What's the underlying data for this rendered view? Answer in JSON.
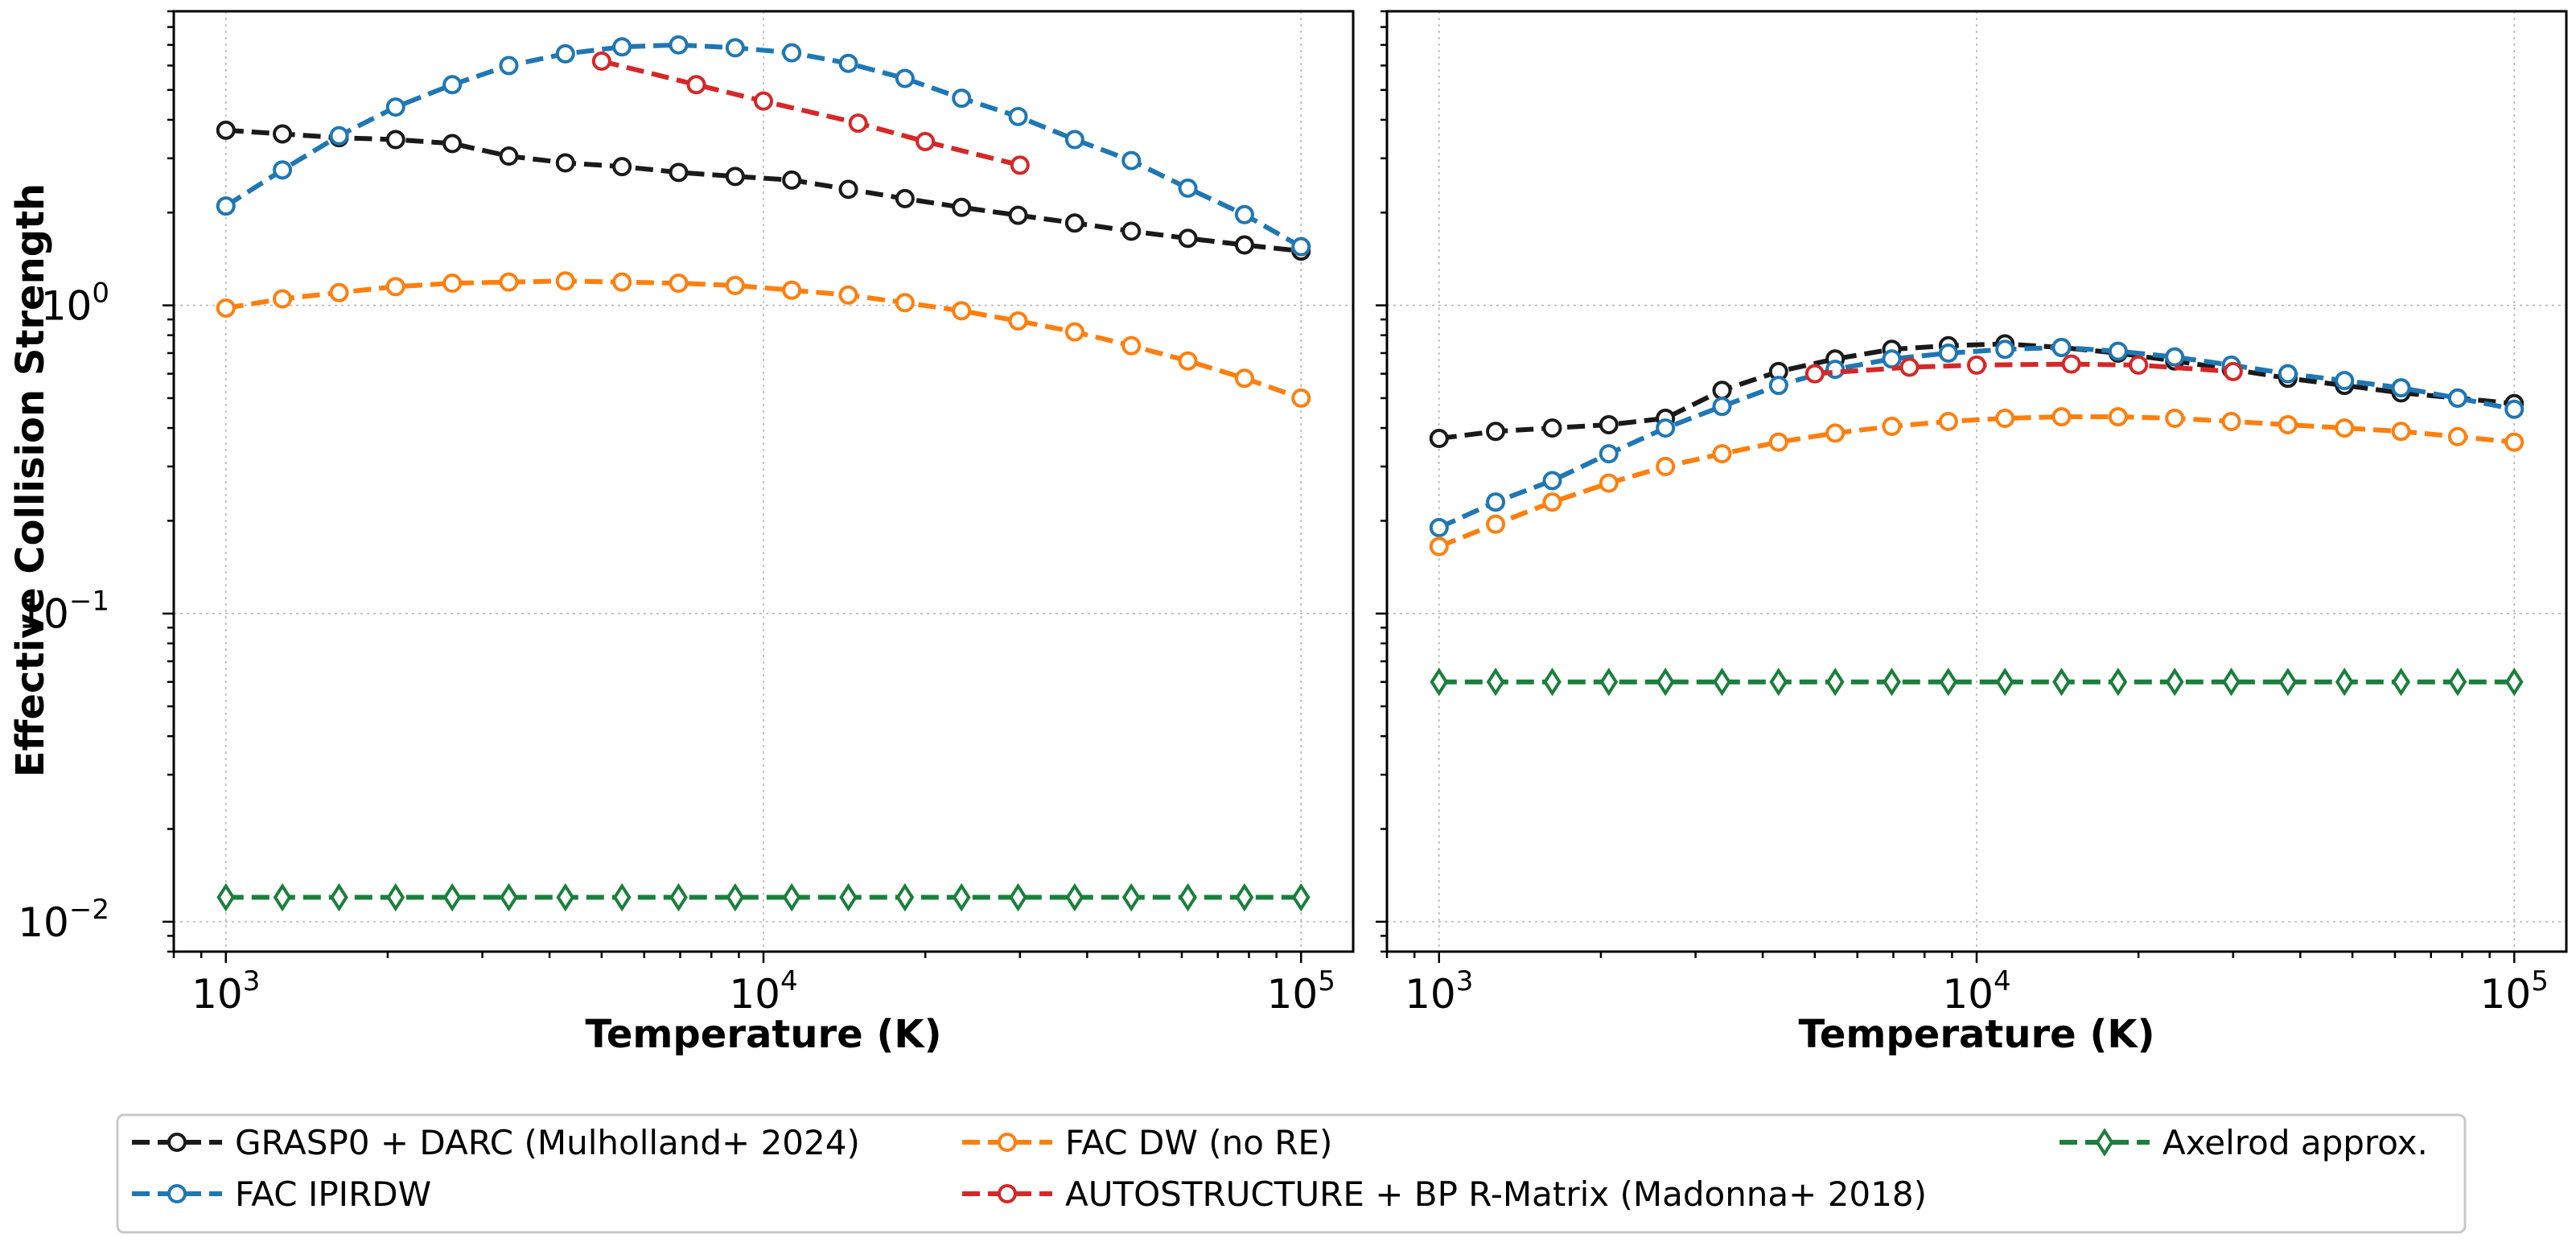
{
  "chart_data": [
    {
      "type": "line",
      "panel": "left",
      "xlabel": "Temperature (K)",
      "ylabel": "Effective Collision Strength",
      "xscale": "log",
      "yscale": "log",
      "xlim": [
        800,
        125000
      ],
      "ylim": [
        0.008,
        9
      ],
      "xticks": [
        {
          "base": "10",
          "exp": "3",
          "value": 1000
        },
        {
          "base": "10",
          "exp": "4",
          "value": 10000
        },
        {
          "base": "10",
          "exp": "5",
          "value": 100000
        }
      ],
      "yticks": [
        {
          "base": "10",
          "exp": "0",
          "value": 1
        },
        {
          "base": "10",
          "exp": "−1",
          "value": 0.1
        },
        {
          "base": "10",
          "exp": "−2",
          "value": 0.01
        }
      ],
      "grid": true,
      "series": [
        {
          "key": "grasp",
          "x": [
            1000,
            1274,
            1624,
            2069,
            2637,
            3360,
            4281,
            5456,
            6952,
            8859,
            11288,
            14384,
            18330,
            23357,
            29764,
            37927,
            48329,
            61585,
            78476,
            100000
          ],
          "values": [
            3.7,
            3.6,
            3.5,
            3.45,
            3.35,
            3.05,
            2.9,
            2.82,
            2.7,
            2.62,
            2.55,
            2.38,
            2.22,
            2.08,
            1.96,
            1.85,
            1.74,
            1.65,
            1.57,
            1.5
          ]
        },
        {
          "key": "ipirdw",
          "x": [
            1000,
            1274,
            1624,
            2069,
            2637,
            3360,
            4281,
            5456,
            6952,
            8859,
            11288,
            14384,
            18330,
            23357,
            29764,
            37927,
            48329,
            61585,
            78476,
            100000
          ],
          "values": [
            2.1,
            2.75,
            3.55,
            4.4,
            5.2,
            6.0,
            6.55,
            6.9,
            7.0,
            6.85,
            6.6,
            6.1,
            5.45,
            4.7,
            4.1,
            3.45,
            2.95,
            2.4,
            1.97,
            1.55
          ]
        },
        {
          "key": "dw",
          "x": [
            1000,
            1274,
            1624,
            2069,
            2637,
            3360,
            4281,
            5456,
            6952,
            8859,
            11288,
            14384,
            18330,
            23357,
            29764,
            37927,
            48329,
            61585,
            78476,
            100000
          ],
          "values": [
            0.98,
            1.05,
            1.1,
            1.15,
            1.18,
            1.19,
            1.2,
            1.19,
            1.18,
            1.16,
            1.12,
            1.08,
            1.02,
            0.96,
            0.89,
            0.82,
            0.74,
            0.66,
            0.58,
            0.5
          ]
        },
        {
          "key": "autostructure",
          "x": [
            5000,
            7500,
            10000,
            15000,
            20000,
            30000
          ],
          "values": [
            6.2,
            5.2,
            4.6,
            3.9,
            3.4,
            2.85
          ]
        },
        {
          "key": "axelrod",
          "x": [
            1000,
            1274,
            1624,
            2069,
            2637,
            3360,
            4281,
            5456,
            6952,
            8859,
            11288,
            14384,
            18330,
            23357,
            29764,
            37927,
            48329,
            61585,
            78476,
            100000
          ],
          "values": [
            0.012,
            0.012,
            0.012,
            0.012,
            0.012,
            0.012,
            0.012,
            0.012,
            0.012,
            0.012,
            0.012,
            0.012,
            0.012,
            0.012,
            0.012,
            0.012,
            0.012,
            0.012,
            0.012,
            0.012
          ]
        }
      ]
    },
    {
      "type": "line",
      "panel": "right",
      "xlabel": "Temperature (K)",
      "ylabel": "",
      "xscale": "log",
      "yscale": "log",
      "xlim": [
        800,
        125000
      ],
      "ylim": [
        0.008,
        9
      ],
      "xticks": [
        {
          "base": "10",
          "exp": "3",
          "value": 1000
        },
        {
          "base": "10",
          "exp": "4",
          "value": 10000
        },
        {
          "base": "10",
          "exp": "5",
          "value": 100000
        }
      ],
      "grid": true,
      "series": [
        {
          "key": "grasp",
          "x": [
            1000,
            1274,
            1624,
            2069,
            2637,
            3360,
            4281,
            5456,
            6952,
            8859,
            11288,
            14384,
            18330,
            23357,
            29764,
            37927,
            48329,
            61585,
            78476,
            100000
          ],
          "values": [
            0.37,
            0.39,
            0.4,
            0.41,
            0.43,
            0.53,
            0.61,
            0.67,
            0.72,
            0.74,
            0.75,
            0.73,
            0.7,
            0.66,
            0.62,
            0.58,
            0.55,
            0.52,
            0.5,
            0.48
          ]
        },
        {
          "key": "ipirdw",
          "x": [
            1000,
            1274,
            1624,
            2069,
            2637,
            3360,
            4281,
            5456,
            6952,
            8859,
            11288,
            14384,
            18330,
            23357,
            29764,
            37927,
            48329,
            61585,
            78476,
            100000
          ],
          "values": [
            0.19,
            0.23,
            0.27,
            0.33,
            0.4,
            0.47,
            0.55,
            0.62,
            0.67,
            0.7,
            0.72,
            0.73,
            0.71,
            0.68,
            0.64,
            0.6,
            0.57,
            0.54,
            0.5,
            0.46
          ]
        },
        {
          "key": "dw",
          "x": [
            1000,
            1274,
            1624,
            2069,
            2637,
            3360,
            4281,
            5456,
            6952,
            8859,
            11288,
            14384,
            18330,
            23357,
            29764,
            37927,
            48329,
            61585,
            78476,
            100000
          ],
          "values": [
            0.165,
            0.195,
            0.23,
            0.265,
            0.3,
            0.33,
            0.36,
            0.385,
            0.405,
            0.42,
            0.43,
            0.435,
            0.435,
            0.43,
            0.42,
            0.41,
            0.4,
            0.39,
            0.375,
            0.36
          ]
        },
        {
          "key": "autostructure",
          "x": [
            5000,
            7500,
            10000,
            15000,
            20000,
            30000
          ],
          "values": [
            0.6,
            0.63,
            0.64,
            0.645,
            0.64,
            0.61
          ]
        },
        {
          "key": "axelrod",
          "x": [
            1000,
            1274,
            1624,
            2069,
            2637,
            3360,
            4281,
            5456,
            6952,
            8859,
            11288,
            14384,
            18330,
            23357,
            29764,
            37927,
            48329,
            61585,
            78476,
            100000
          ],
          "values": [
            0.06,
            0.06,
            0.06,
            0.06,
            0.06,
            0.06,
            0.06,
            0.06,
            0.06,
            0.06,
            0.06,
            0.06,
            0.06,
            0.06,
            0.06,
            0.06,
            0.06,
            0.06,
            0.06,
            0.06
          ]
        }
      ]
    }
  ],
  "series_styles": {
    "grasp": {
      "name": "GRASP0 + DARC (Mulholland+ 2024)",
      "color": "#1a1a1a",
      "marker": "circle"
    },
    "ipirdw": {
      "name": "FAC IPIRDW",
      "color": "#1f77b4",
      "marker": "circle"
    },
    "dw": {
      "name": "FAC DW (no RE)",
      "color": "#ff7f0e",
      "marker": "circle"
    },
    "autostructure": {
      "name": "AUTOSTRUCTURE + BP R-Matrix (Madonna+ 2018)",
      "color": "#d62728",
      "marker": "circle"
    },
    "axelrod": {
      "name": "Axelrod approx.",
      "color": "#1a7f3c",
      "marker": "diamond"
    }
  },
  "legend": {
    "placement": "bottom-center",
    "columns": 3,
    "order": [
      "grasp",
      "ipirdw",
      "dw",
      "autostructure",
      "axelrod"
    ]
  }
}
